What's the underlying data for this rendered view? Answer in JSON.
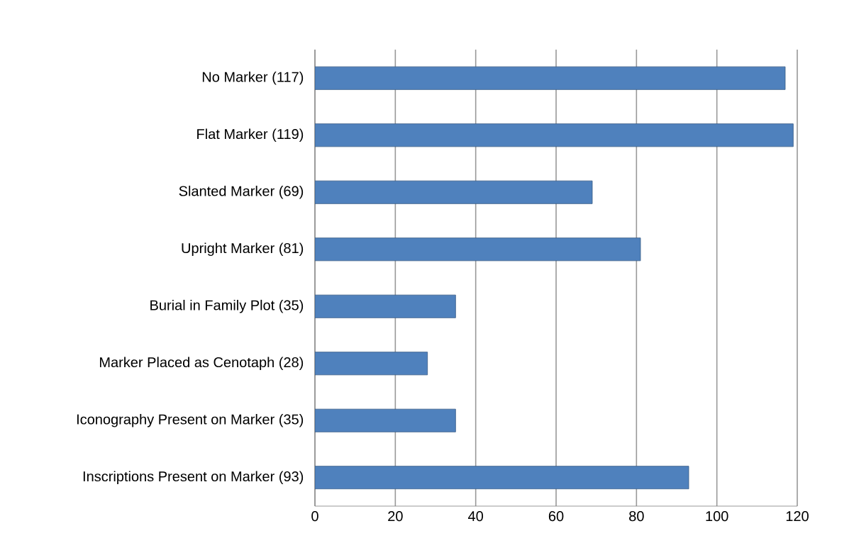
{
  "chart_data": {
    "type": "bar",
    "orientation": "horizontal",
    "categories": [
      "No  Marker (117)",
      "Flat  Marker (119)",
      "Slanted  Marker (69)",
      "Upright  Marker (81)",
      "Burial in Family Plot (35)",
      "Marker Placed as Cenotaph (28)",
      "Iconography Present on Marker (35)",
      "Inscriptions Present on Marker (93)"
    ],
    "values": [
      117,
      119,
      69,
      81,
      35,
      28,
      35,
      93
    ],
    "color": "#4f81bd",
    "xlim": [
      0,
      120
    ],
    "xticks": [
      0,
      20,
      40,
      60,
      80,
      100,
      120
    ],
    "grid": "x"
  }
}
